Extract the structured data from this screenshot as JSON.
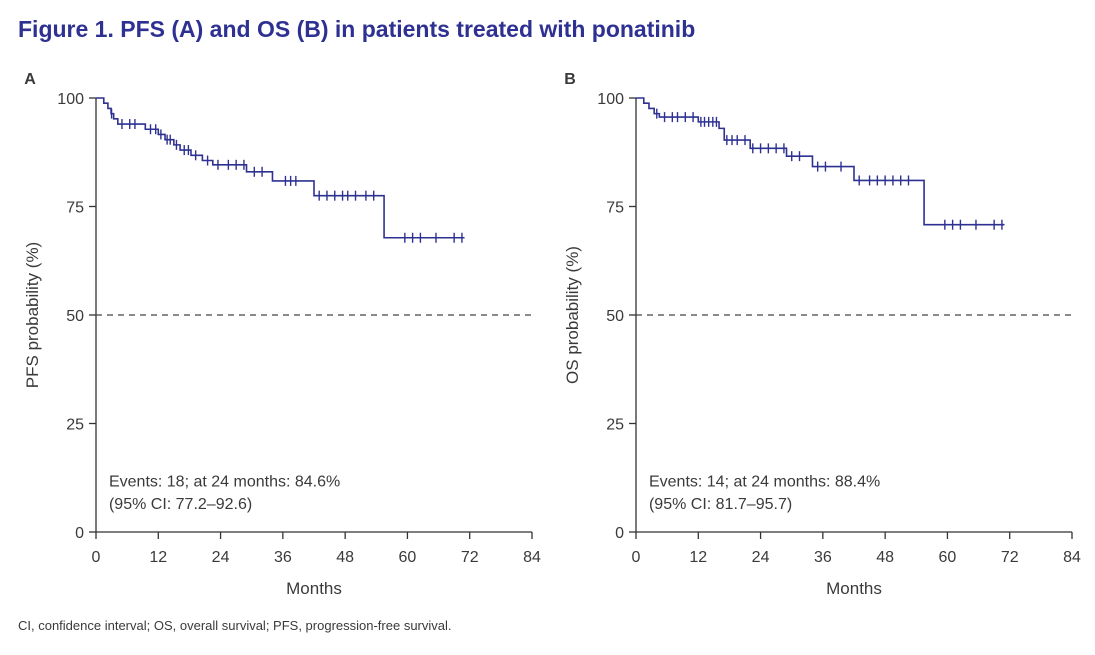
{
  "figure": {
    "title": "Figure 1. PFS (A) and OS (B) in patients treated with ponatinib",
    "footnote": "CI, confidence interval; OS, overall survival; PFS, progression-free survival."
  },
  "colors": {
    "title": "#2e3192",
    "curve": "#2e3192",
    "axis": "#333333",
    "text": "#3a3a3a",
    "reference": "#444444"
  },
  "chart_data": [
    {
      "type": "line",
      "subtype": "kaplan-meier",
      "panel_label": "A",
      "ylabel": "PFS probability (%)",
      "xlabel": "Months",
      "xlim": [
        0,
        84
      ],
      "ylim": [
        0,
        100
      ],
      "xticks": [
        0,
        12,
        24,
        36,
        48,
        60,
        72,
        84
      ],
      "yticks": [
        0,
        25,
        50,
        75,
        100
      ],
      "reference_line": 50,
      "annotation_line1": "Events: 18; at 24 months: 84.6%",
      "annotation_line2": "(95% CI: 77.2–92.6)",
      "steps": [
        [
          0,
          100
        ],
        [
          1.5,
          98.8
        ],
        [
          2.3,
          97.6
        ],
        [
          2.9,
          96.4
        ],
        [
          3.4,
          95.2
        ],
        [
          4.2,
          94.0
        ],
        [
          9.5,
          92.8
        ],
        [
          12.0,
          91.6
        ],
        [
          13.3,
          90.4
        ],
        [
          15.0,
          89.2
        ],
        [
          16.2,
          88.0
        ],
        [
          18.3,
          86.8
        ],
        [
          20.5,
          85.6
        ],
        [
          22.5,
          84.6
        ],
        [
          29.0,
          83.0
        ],
        [
          34.0,
          80.9
        ],
        [
          42.0,
          77.5
        ],
        [
          55.5,
          67.8
        ],
        [
          71.0,
          67.8
        ]
      ],
      "censored": [
        [
          3.0,
          96.4
        ],
        [
          5.0,
          94.0
        ],
        [
          6.5,
          94.0
        ],
        [
          7.5,
          94.0
        ],
        [
          10.5,
          92.8
        ],
        [
          11.5,
          92.8
        ],
        [
          12.5,
          91.6
        ],
        [
          13.7,
          90.4
        ],
        [
          14.3,
          90.4
        ],
        [
          15.5,
          89.2
        ],
        [
          17.0,
          88.0
        ],
        [
          17.8,
          88.0
        ],
        [
          19.2,
          86.8
        ],
        [
          21.5,
          85.6
        ],
        [
          23.5,
          84.6
        ],
        [
          25.5,
          84.6
        ],
        [
          27.0,
          84.6
        ],
        [
          28.5,
          84.6
        ],
        [
          30.5,
          83.0
        ],
        [
          32.0,
          83.0
        ],
        [
          36.5,
          80.9
        ],
        [
          37.5,
          80.9
        ],
        [
          38.5,
          80.9
        ],
        [
          43.0,
          77.5
        ],
        [
          44.5,
          77.5
        ],
        [
          46.0,
          77.5
        ],
        [
          47.5,
          77.5
        ],
        [
          48.5,
          77.5
        ],
        [
          50.0,
          77.5
        ],
        [
          52.0,
          77.5
        ],
        [
          53.5,
          77.5
        ],
        [
          59.5,
          67.8
        ],
        [
          61.0,
          67.8
        ],
        [
          62.5,
          67.8
        ],
        [
          65.5,
          67.8
        ],
        [
          69.0,
          67.8
        ],
        [
          70.5,
          67.8
        ]
      ]
    },
    {
      "type": "line",
      "subtype": "kaplan-meier",
      "panel_label": "B",
      "ylabel": "OS probability (%)",
      "xlabel": "Months",
      "xlim": [
        0,
        84
      ],
      "ylim": [
        0,
        100
      ],
      "xticks": [
        0,
        12,
        24,
        36,
        48,
        60,
        72,
        84
      ],
      "yticks": [
        0,
        25,
        50,
        75,
        100
      ],
      "reference_line": 50,
      "annotation_line1": "Events: 14; at 24 months: 88.4%",
      "annotation_line2": "(95% CI: 81.7–95.7)",
      "steps": [
        [
          0,
          100
        ],
        [
          1.5,
          98.8
        ],
        [
          2.5,
          97.6
        ],
        [
          3.5,
          96.4
        ],
        [
          4.5,
          95.6
        ],
        [
          12.0,
          94.5
        ],
        [
          16.0,
          93.0
        ],
        [
          17.0,
          90.3
        ],
        [
          22.0,
          88.4
        ],
        [
          29.0,
          86.6
        ],
        [
          34.0,
          84.2
        ],
        [
          42.0,
          81.0
        ],
        [
          55.5,
          70.8
        ],
        [
          71.0,
          70.8
        ]
      ],
      "censored": [
        [
          4.0,
          96.4
        ],
        [
          5.5,
          95.6
        ],
        [
          7.0,
          95.6
        ],
        [
          8.0,
          95.6
        ],
        [
          9.5,
          95.6
        ],
        [
          11.0,
          95.6
        ],
        [
          12.5,
          94.5
        ],
        [
          13.2,
          94.5
        ],
        [
          14.0,
          94.5
        ],
        [
          14.8,
          94.5
        ],
        [
          15.5,
          94.5
        ],
        [
          17.5,
          90.3
        ],
        [
          18.5,
          90.3
        ],
        [
          19.5,
          90.3
        ],
        [
          21.0,
          90.3
        ],
        [
          22.5,
          88.4
        ],
        [
          24.0,
          88.4
        ],
        [
          25.5,
          88.4
        ],
        [
          27.0,
          88.4
        ],
        [
          28.5,
          88.4
        ],
        [
          30.0,
          86.6
        ],
        [
          31.5,
          86.6
        ],
        [
          35.0,
          84.2
        ],
        [
          36.5,
          84.2
        ],
        [
          39.5,
          84.2
        ],
        [
          43.0,
          81.0
        ],
        [
          45.0,
          81.0
        ],
        [
          46.5,
          81.0
        ],
        [
          48.0,
          81.0
        ],
        [
          49.5,
          81.0
        ],
        [
          51.0,
          81.0
        ],
        [
          52.5,
          81.0
        ],
        [
          59.5,
          70.8
        ],
        [
          61.0,
          70.8
        ],
        [
          62.5,
          70.8
        ],
        [
          65.5,
          70.8
        ],
        [
          69.0,
          70.8
        ],
        [
          70.5,
          70.8
        ]
      ]
    }
  ]
}
